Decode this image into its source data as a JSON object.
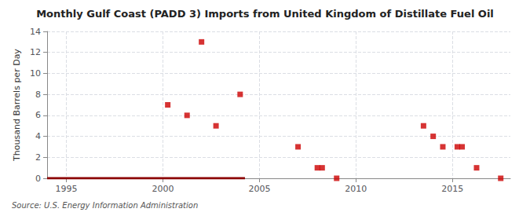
{
  "chart_data": {
    "type": "scatter",
    "title": "Monthly Gulf Coast (PADD 3) Imports from United Kingdom of Distillate Fuel Oil",
    "ylabel": "Thousand Barrels per Day",
    "annotations": [
      "Source: U.S. Energy Information Administration"
    ],
    "series": [
      {
        "type": "scatter",
        "color": "#cc0000",
        "marker": "square",
        "x": [
          2000.25,
          2001.25,
          2002.0,
          2002.75,
          2004.0,
          2007.0,
          2008.0,
          2008.25,
          2009.0,
          2013.5,
          2014.0,
          2014.5,
          2015.25,
          2015.5,
          2016.25,
          2017.5
        ],
        "values": [
          7,
          6,
          13,
          5,
          8,
          3,
          1,
          1,
          0,
          5,
          4,
          3,
          3,
          3,
          1,
          0
        ]
      },
      {
        "type": "line",
        "color": "#8b0000",
        "line_style": "solid",
        "x": [
          1994.0,
          2004.25
        ],
        "values": [
          0,
          0
        ]
      }
    ],
    "xlim": [
      1994.0,
      2018.0
    ],
    "ylim": [
      0,
      14
    ],
    "xticks": [
      1995,
      2000,
      2005,
      2010,
      2015
    ],
    "yticks": [
      0,
      2,
      4,
      6,
      8,
      10,
      12,
      14
    ],
    "grid": true
  }
}
